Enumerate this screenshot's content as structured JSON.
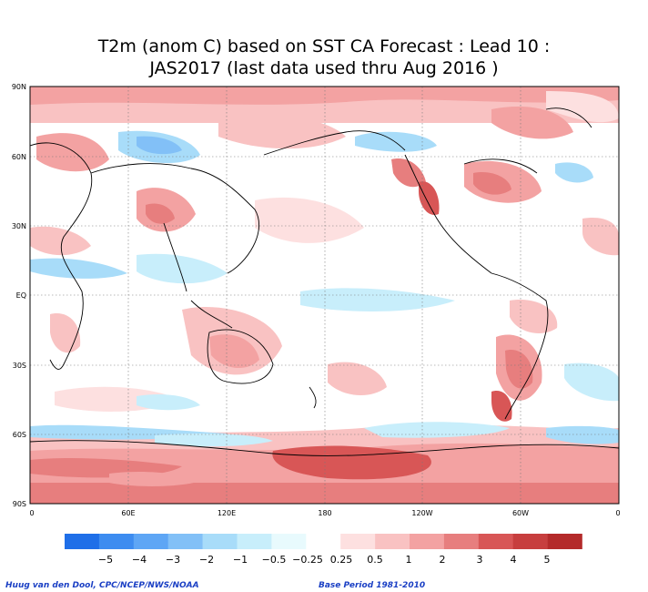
{
  "title_line1": "T2m (anom C) based on SST CA Forecast : Lead 10 :",
  "title_line2": "JAS2017 (last data used thru Aug 2016 )",
  "axes": {
    "lat_labels": [
      "90N",
      "60N",
      "30N",
      "EQ",
      "30S",
      "60S",
      "90S"
    ],
    "lon_labels": [
      "0",
      "60E",
      "120E",
      "180",
      "120W",
      "60W",
      "0"
    ]
  },
  "colorbar": {
    "labels": [
      "−5",
      "−4",
      "−3",
      "−2",
      "−1",
      "−0.5",
      "−0.25",
      "0.25",
      "0.5",
      "1",
      "2",
      "3",
      "4",
      "5"
    ],
    "colors": [
      "#1f6fe8",
      "#3d8cf0",
      "#5ea6f5",
      "#82c0f7",
      "#a8dcf9",
      "#c8eefb",
      "#e8fafd",
      "#ffffff",
      "#fde0e0",
      "#f9c2c2",
      "#f3a2a2",
      "#e77e7e",
      "#d85656",
      "#c73e3e",
      "#b42a2a"
    ]
  },
  "credit": "Huug van den Dool, CPC/NCEP/NWS/NOAA",
  "base_period": "Base Period 1981-2010"
}
